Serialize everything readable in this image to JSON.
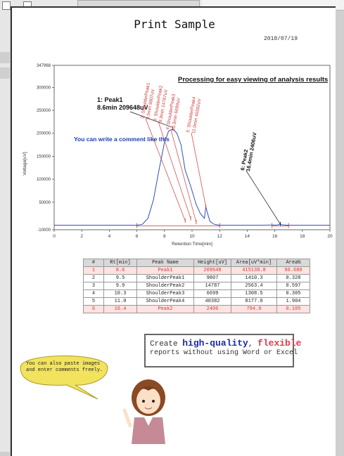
{
  "document": {
    "title": "Print Sample",
    "date": "2018/07/19"
  },
  "chart": {
    "heading": "Processing for easy viewing of analysis results",
    "comment": "You can write a comment like this",
    "ylabel": "Voltage[uV]",
    "xlabel": "Retention Time[min]",
    "peak_labels": [
      {
        "line1": "1: Peak1",
        "line2": "8.6min 209648uV"
      },
      {
        "line1": "2: ShoulderPeak1",
        "line2": "9.5min 9807uV"
      },
      {
        "line1": "3: ShoulderPeak2",
        "line2": "9.9min 14787uV"
      },
      {
        "line1": "4: ShoulderPeak3",
        "line2": "10.3min 6699uV"
      },
      {
        "line1": "5: ShoulderPeak4",
        "line2": "11.0min 40382uV"
      },
      {
        "line1": "6: Peak2",
        "line2": "16.4min 2406uV"
      }
    ],
    "colors": {
      "trace": "#2f4fbf",
      "baseline": "#c0392b",
      "annotation": "#d23a3a",
      "heading": "#111111",
      "comment": "#1e3fa8"
    }
  },
  "chart_data": {
    "type": "line",
    "title": "Processing for easy viewing of analysis results",
    "xlabel": "Retention Time[min]",
    "ylabel": "Voltage[uV]",
    "xlim": [
      0,
      20
    ],
    "ylim": [
      -10000,
      347968
    ],
    "x_ticks": [
      "0",
      "2",
      "4",
      "6",
      "8",
      "10",
      "12",
      "14",
      "16",
      "18",
      "20"
    ],
    "y_ticks": [
      "-10000",
      "50000",
      "100000",
      "150000",
      "200000",
      "250000",
      "300000",
      "347968"
    ],
    "series": [
      {
        "x": [
          0,
          5,
          6.0,
          6.4,
          6.8,
          7.2,
          7.6,
          8.0,
          8.3,
          8.6,
          8.9,
          9.2,
          9.5,
          9.9,
          10.3,
          10.6,
          10.9,
          11.0,
          11.1,
          11.3,
          11.6,
          12.0,
          13,
          15,
          16.2,
          16.4,
          16.6,
          17,
          20
        ],
        "y": [
          0,
          0,
          0,
          2000,
          15000,
          55000,
          120000,
          180000,
          205000,
          209648,
          200000,
          175000,
          120000,
          85000,
          45000,
          25000,
          15000,
          40382,
          28000,
          8000,
          2000,
          0,
          0,
          0,
          500,
          2406,
          500,
          0,
          0
        ]
      }
    ],
    "peaks": [
      {
        "name": "Peak1",
        "rt": 8.6,
        "height": 209648
      },
      {
        "name": "ShoulderPeak1",
        "rt": 9.5,
        "height": 9807
      },
      {
        "name": "ShoulderPeak2",
        "rt": 9.9,
        "height": 14787
      },
      {
        "name": "ShoulderPeak3",
        "rt": 10.3,
        "height": 6699
      },
      {
        "name": "ShoulderPeak4",
        "rt": 11.0,
        "height": 40382
      },
      {
        "name": "Peak2",
        "rt": 16.4,
        "height": 2406
      }
    ],
    "grid": false,
    "legend": "none"
  },
  "table": {
    "headers": [
      "#",
      "Rt[min]",
      "Peak Name",
      "Height[uV]",
      "Area[uV*min]",
      "Area%"
    ],
    "rows": [
      [
        "1",
        "8.6",
        "Peak1",
        "209648",
        "415138.8",
        "96.680"
      ],
      [
        "2",
        "9.5",
        "ShoulderPeak1",
        "9807",
        "1410.3",
        "0.328"
      ],
      [
        "3",
        "9.9",
        "ShoulderPeak2",
        "14787",
        "2563.4",
        "0.597"
      ],
      [
        "4",
        "10.3",
        "ShoulderPeak3",
        "6699",
        "1308.5",
        "0.305"
      ],
      [
        "5",
        "11.0",
        "ShoulderPeak4",
        "40382",
        "8177.0",
        "1.904"
      ],
      [
        "6",
        "16.4",
        "Peak2",
        "2406",
        "794.9",
        "0.185"
      ]
    ],
    "highlight_rows": [
      0,
      5
    ]
  },
  "callout": {
    "create": "Create ",
    "high_quality": "high-quality",
    "comma": ", ",
    "flexible": "flexible",
    "line2": "reports without using Word or Excel"
  },
  "bubble": {
    "text": "You can also paste images and enter comments freely."
  }
}
